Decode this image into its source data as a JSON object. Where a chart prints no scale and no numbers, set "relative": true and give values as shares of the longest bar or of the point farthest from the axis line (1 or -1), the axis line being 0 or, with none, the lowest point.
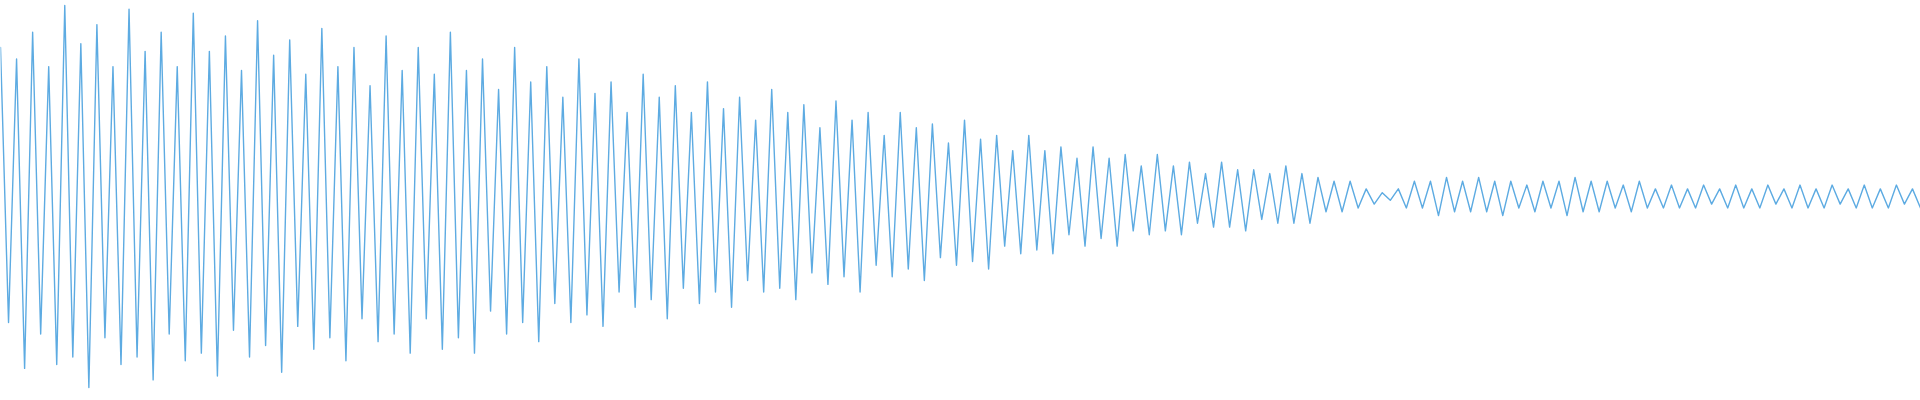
{
  "chart_data": {
    "type": "line",
    "relative": true,
    "categories": [
      null,
      null,
      null,
      null,
      null,
      null,
      null,
      null,
      null,
      null,
      null,
      null,
      null,
      null,
      null,
      null,
      null,
      null,
      null,
      null,
      null,
      null,
      null,
      null,
      null,
      null,
      null,
      null,
      null,
      null,
      null,
      null,
      null,
      null,
      null,
      null,
      null,
      null,
      null,
      null,
      null,
      null,
      null,
      null,
      null,
      null,
      null,
      null,
      null,
      null,
      null,
      null,
      null,
      null,
      null,
      null,
      null,
      null,
      null,
      null,
      null,
      null,
      null,
      null,
      null,
      null,
      null,
      null,
      null,
      null,
      null,
      null,
      null,
      null,
      null,
      null,
      null,
      null,
      null,
      null,
      null,
      null,
      null,
      null,
      null,
      null,
      null,
      null,
      null,
      null,
      null,
      null,
      null,
      null,
      null,
      null,
      null,
      null,
      null,
      null,
      null,
      null,
      null,
      null,
      null,
      null,
      null,
      null,
      null,
      null,
      null,
      null,
      null,
      null,
      null,
      null,
      null,
      null,
      null,
      null,
      null,
      null,
      null,
      null,
      null,
      null,
      null,
      null,
      null,
      null,
      null,
      null,
      null,
      null,
      null,
      null,
      null,
      null,
      null,
      null,
      null,
      null,
      null,
      null,
      null,
      null,
      null,
      null,
      null,
      null,
      null,
      null,
      null,
      null,
      null,
      null,
      null,
      null,
      null,
      null,
      null,
      null,
      null,
      null,
      null,
      null,
      null,
      null,
      null,
      null,
      null,
      null,
      null,
      null,
      null,
      null,
      null,
      null,
      null,
      null,
      null,
      null,
      null,
      null,
      null,
      null,
      null,
      null,
      null,
      null,
      null,
      null,
      null,
      null,
      null,
      null,
      null,
      null,
      null,
      null,
      null,
      null,
      null,
      null,
      null,
      null,
      null,
      null,
      null,
      null,
      null,
      null,
      null,
      null,
      null,
      null,
      null,
      null,
      null,
      null,
      null,
      null,
      null,
      null,
      null,
      null,
      null,
      null,
      null,
      null,
      null,
      null,
      null,
      null,
      null,
      null,
      null,
      null,
      null,
      null
    ],
    "series": [
      {
        "color": "#5dabe2",
        "values": [
          0.89,
          0.17,
          0.86,
          0.05,
          0.93,
          0.14,
          0.84,
          0.06,
          1.0,
          0.08,
          0.9,
          0.0,
          0.95,
          0.13,
          0.84,
          0.06,
          0.99,
          0.08,
          0.88,
          0.02,
          0.93,
          0.14,
          0.84,
          0.07,
          0.98,
          0.09,
          0.88,
          0.03,
          0.92,
          0.15,
          0.83,
          0.08,
          0.96,
          0.11,
          0.87,
          0.04,
          0.91,
          0.16,
          0.82,
          0.1,
          0.94,
          0.13,
          0.84,
          0.07,
          0.89,
          0.18,
          0.79,
          0.12,
          0.92,
          0.14,
          0.83,
          0.09,
          0.89,
          0.18,
          0.82,
          0.1,
          0.93,
          0.13,
          0.83,
          0.09,
          0.86,
          0.2,
          0.78,
          0.14,
          0.89,
          0.17,
          0.8,
          0.12,
          0.84,
          0.22,
          0.76,
          0.17,
          0.86,
          0.19,
          0.77,
          0.16,
          0.8,
          0.25,
          0.72,
          0.21,
          0.82,
          0.23,
          0.76,
          0.18,
          0.79,
          0.26,
          0.72,
          0.22,
          0.8,
          0.25,
          0.73,
          0.21,
          0.76,
          0.28,
          0.7,
          0.25,
          0.78,
          0.26,
          0.72,
          0.23,
          0.74,
          0.3,
          0.68,
          0.27,
          0.75,
          0.29,
          0.7,
          0.25,
          0.72,
          0.32,
          0.66,
          0.29,
          0.72,
          0.31,
          0.68,
          0.28,
          0.69,
          0.34,
          0.64,
          0.32,
          0.7,
          0.33,
          0.65,
          0.31,
          0.66,
          0.37,
          0.62,
          0.35,
          0.66,
          0.36,
          0.62,
          0.35,
          0.63,
          0.4,
          0.6,
          0.37,
          0.63,
          0.39,
          0.6,
          0.37,
          0.61,
          0.41,
          0.58,
          0.4,
          0.61,
          0.41,
          0.58,
          0.4,
          0.59,
          0.43,
          0.56,
          0.42,
          0.59,
          0.42,
          0.57,
          0.41,
          0.57,
          0.44,
          0.56,
          0.43,
          0.58,
          0.43,
          0.56,
          0.43,
          0.55,
          0.46,
          0.54,
          0.46,
          0.54,
          0.47,
          0.52,
          0.48,
          0.51,
          0.49,
          0.52,
          0.47,
          0.54,
          0.47,
          0.54,
          0.45,
          0.55,
          0.46,
          0.54,
          0.46,
          0.55,
          0.46,
          0.54,
          0.45,
          0.54,
          0.47,
          0.53,
          0.46,
          0.54,
          0.47,
          0.54,
          0.45,
          0.55,
          0.46,
          0.54,
          0.46,
          0.54,
          0.47,
          0.53,
          0.46,
          0.54,
          0.47,
          0.52,
          0.47,
          0.53,
          0.47,
          0.52,
          0.47,
          0.53,
          0.48,
          0.52,
          0.47,
          0.53,
          0.47,
          0.52,
          0.47,
          0.53,
          0.48,
          0.52,
          0.47,
          0.53,
          0.47,
          0.52,
          0.47,
          0.53,
          0.48,
          0.52,
          0.47,
          0.53,
          0.47,
          0.52,
          0.47,
          0.53,
          0.48,
          0.52,
          0.47
        ]
      }
    ]
  }
}
